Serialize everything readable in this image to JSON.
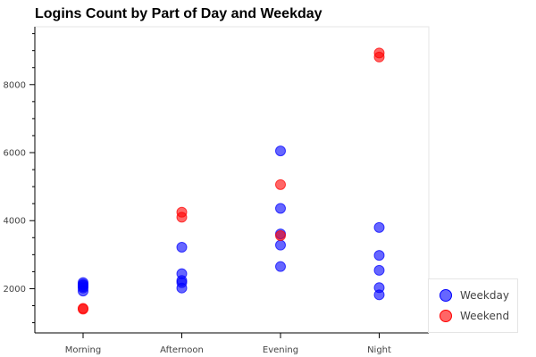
{
  "chart_data": {
    "type": "scatter",
    "title": "Logins Count by Part of Day and Weekday",
    "xlabel": "",
    "ylabel": "",
    "categories": [
      "Morning",
      "Afternoon",
      "Evening",
      "Night"
    ],
    "ylim": [
      700,
      9700
    ],
    "yticks": [
      2000,
      4000,
      6000,
      8000
    ],
    "grid": false,
    "legend_position": "bottom-right",
    "series": [
      {
        "name": "Weekday",
        "color": "#0000ff",
        "points": [
          {
            "x": "Morning",
            "y": 2180
          },
          {
            "x": "Morning",
            "y": 2130
          },
          {
            "x": "Morning",
            "y": 2100
          },
          {
            "x": "Morning",
            "y": 2060
          },
          {
            "x": "Morning",
            "y": 2020
          },
          {
            "x": "Morning",
            "y": 1930
          },
          {
            "x": "Afternoon",
            "y": 3220
          },
          {
            "x": "Afternoon",
            "y": 2440
          },
          {
            "x": "Afternoon",
            "y": 2240
          },
          {
            "x": "Afternoon",
            "y": 2180
          },
          {
            "x": "Afternoon",
            "y": 2020
          },
          {
            "x": "Evening",
            "y": 6050
          },
          {
            "x": "Evening",
            "y": 4360
          },
          {
            "x": "Evening",
            "y": 3610
          },
          {
            "x": "Evening",
            "y": 3280
          },
          {
            "x": "Evening",
            "y": 2650
          },
          {
            "x": "Night",
            "y": 3800
          },
          {
            "x": "Night",
            "y": 2980
          },
          {
            "x": "Night",
            "y": 2540
          },
          {
            "x": "Night",
            "y": 2030
          },
          {
            "x": "Night",
            "y": 1820
          }
        ]
      },
      {
        "name": "Weekend",
        "color": "#ff0000",
        "points": [
          {
            "x": "Morning",
            "y": 1420
          },
          {
            "x": "Morning",
            "y": 1400
          },
          {
            "x": "Afternoon",
            "y": 4250
          },
          {
            "x": "Afternoon",
            "y": 4100
          },
          {
            "x": "Evening",
            "y": 5060
          },
          {
            "x": "Evening",
            "y": 3560
          },
          {
            "x": "Night",
            "y": 8930
          },
          {
            "x": "Night",
            "y": 8810
          }
        ]
      }
    ]
  }
}
